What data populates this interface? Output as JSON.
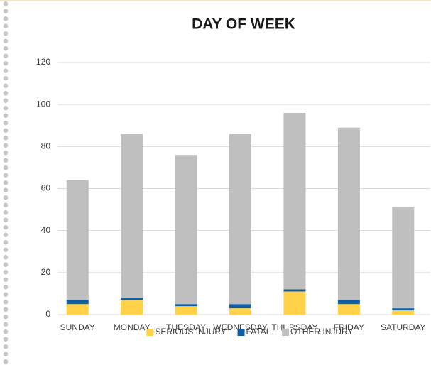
{
  "chart_data": {
    "type": "stacked_bar",
    "title": "DAY OF WEEK",
    "categories": [
      "SUNDAY",
      "MONDAY",
      "TUESDAY",
      "WEDNESDAY",
      "THURSDAY",
      "FRIDAY",
      "SATURDAY"
    ],
    "series": [
      {
        "name": "SERIOUS INJURY",
        "color": "#ffd24a",
        "values": [
          5,
          7,
          4,
          3,
          11,
          5,
          2
        ]
      },
      {
        "name": "FATAL",
        "color": "#0f5fa8",
        "values": [
          2,
          1,
          1,
          2,
          1,
          2,
          1
        ]
      },
      {
        "name": "OTHER INJURY",
        "color": "#bfbfbf",
        "values": [
          57,
          78,
          71,
          81,
          84,
          82,
          48
        ]
      }
    ],
    "ylim": [
      0,
      120
    ],
    "yticks": [
      0,
      20,
      40,
      60,
      80,
      100,
      120
    ],
    "grid": true,
    "legend": "bottom"
  }
}
